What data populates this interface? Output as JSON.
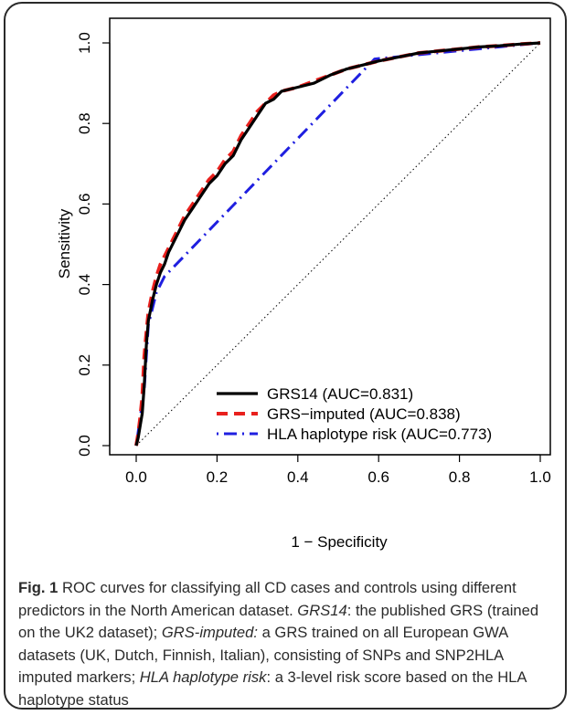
{
  "chart_data": {
    "type": "line",
    "xlabel": "1 − Specificity",
    "ylabel": "Sensitivity",
    "xlim": [
      0.0,
      1.0
    ],
    "ylim": [
      0.0,
      1.0
    ],
    "x_ticks": [
      "0.0",
      "0.2",
      "0.4",
      "0.6",
      "0.8",
      "1.0"
    ],
    "y_ticks": [
      "0.0",
      "0.2",
      "0.4",
      "0.6",
      "0.8",
      "1.0"
    ],
    "grid": false,
    "legend_position": "bottom-right",
    "diagonal_reference": true,
    "series": [
      {
        "name": "GRS14 (AUC=0.831)",
        "color": "#000000",
        "style": "solid",
        "points": [
          [
            0,
            0
          ],
          [
            0.005,
            0.02
          ],
          [
            0.01,
            0.05
          ],
          [
            0.015,
            0.08
          ],
          [
            0.02,
            0.15
          ],
          [
            0.025,
            0.25
          ],
          [
            0.03,
            0.31
          ],
          [
            0.04,
            0.36
          ],
          [
            0.05,
            0.4
          ],
          [
            0.06,
            0.43
          ],
          [
            0.07,
            0.45
          ],
          [
            0.08,
            0.48
          ],
          [
            0.1,
            0.52
          ],
          [
            0.12,
            0.56
          ],
          [
            0.14,
            0.59
          ],
          [
            0.16,
            0.62
          ],
          [
            0.18,
            0.65
          ],
          [
            0.2,
            0.67
          ],
          [
            0.22,
            0.7
          ],
          [
            0.24,
            0.72
          ],
          [
            0.25,
            0.74
          ],
          [
            0.26,
            0.76
          ],
          [
            0.28,
            0.79
          ],
          [
            0.3,
            0.82
          ],
          [
            0.32,
            0.85
          ],
          [
            0.34,
            0.86
          ],
          [
            0.36,
            0.88
          ],
          [
            0.4,
            0.89
          ],
          [
            0.44,
            0.9
          ],
          [
            0.48,
            0.92
          ],
          [
            0.52,
            0.935
          ],
          [
            0.56,
            0.945
          ],
          [
            0.6,
            0.955
          ],
          [
            0.65,
            0.965
          ],
          [
            0.7,
            0.975
          ],
          [
            0.75,
            0.98
          ],
          [
            0.8,
            0.985
          ],
          [
            0.85,
            0.99
          ],
          [
            0.9,
            0.993
          ],
          [
            0.95,
            0.997
          ],
          [
            1.0,
            1.0
          ]
        ]
      },
      {
        "name": "GRS−imputed (AUC=0.838)",
        "color": "#e8201d",
        "style": "dashed",
        "points": [
          [
            0,
            0
          ],
          [
            0.005,
            0.03
          ],
          [
            0.01,
            0.07
          ],
          [
            0.015,
            0.12
          ],
          [
            0.02,
            0.22
          ],
          [
            0.025,
            0.28
          ],
          [
            0.03,
            0.33
          ],
          [
            0.04,
            0.38
          ],
          [
            0.05,
            0.42
          ],
          [
            0.06,
            0.45
          ],
          [
            0.08,
            0.49
          ],
          [
            0.1,
            0.53
          ],
          [
            0.12,
            0.57
          ],
          [
            0.14,
            0.6
          ],
          [
            0.16,
            0.63
          ],
          [
            0.18,
            0.66
          ],
          [
            0.2,
            0.68
          ],
          [
            0.22,
            0.71
          ],
          [
            0.24,
            0.73
          ],
          [
            0.26,
            0.77
          ],
          [
            0.28,
            0.8
          ],
          [
            0.3,
            0.83
          ],
          [
            0.32,
            0.85
          ],
          [
            0.34,
            0.87
          ],
          [
            0.36,
            0.88
          ],
          [
            0.4,
            0.89
          ],
          [
            0.44,
            0.905
          ],
          [
            0.48,
            0.92
          ],
          [
            0.52,
            0.935
          ],
          [
            0.56,
            0.945
          ],
          [
            0.6,
            0.955
          ],
          [
            0.65,
            0.965
          ],
          [
            0.7,
            0.975
          ],
          [
            0.75,
            0.98
          ],
          [
            0.8,
            0.985
          ],
          [
            0.85,
            0.99
          ],
          [
            0.9,
            0.993
          ],
          [
            0.95,
            0.997
          ],
          [
            1.0,
            1.0
          ]
        ]
      },
      {
        "name": "HLA haplotype risk (AUC=0.773)",
        "color": "#1f1fe0",
        "style": "dotdash",
        "points": [
          [
            0,
            0
          ],
          [
            0.02,
            0.14
          ],
          [
            0.03,
            0.3
          ],
          [
            0.05,
            0.38
          ],
          [
            0.07,
            0.42
          ],
          [
            0.59,
            0.96
          ],
          [
            1.0,
            1.0
          ]
        ]
      }
    ]
  },
  "caption": {
    "fig_label": "Fig. 1",
    "part1": " ROC curves for classifying all CD cases and controls using different predictors in the North American dataset. ",
    "term1": "GRS14",
    "part2": ": the published GRS (trained on the UK2 dataset); ",
    "term2": "GRS-imputed:",
    "part3": " a GRS trained on all European GWA datasets (UK, Dutch, Finnish, Italian), consisting of SNPs and SNP2HLA imputed markers; ",
    "term3": "HLA haplotype risk",
    "part4": ": a 3-level risk score based on the HLA haplotype status"
  }
}
